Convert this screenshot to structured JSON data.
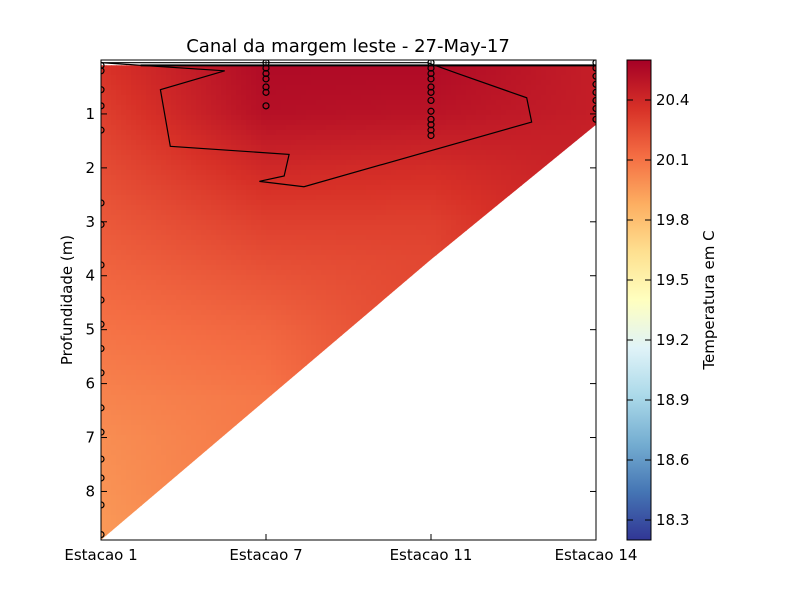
{
  "chart_data": {
    "type": "heatmap",
    "title": "Canal da margem leste - 27-May-17",
    "ylabel": "Profundidade (m)",
    "xlabel": "",
    "x_categories": [
      "Estacao 1",
      "Estacao 7",
      "Estacao 11",
      "Estacao 14"
    ],
    "y_ticks": [
      1,
      2,
      3,
      4,
      5,
      6,
      7,
      8
    ],
    "ylim": [
      8.9,
      0
    ],
    "colorbar": {
      "label": "Temperatura em C",
      "range": [
        18.2,
        20.6
      ],
      "ticks": [
        "18.3",
        "18.6",
        "18.9",
        "19.2",
        "19.5",
        "19.8",
        "20.1",
        "20.4"
      ],
      "colormap": "RdYlBu_r"
    },
    "contour_level_c": 20.4,
    "station_bottom_depth_m": {
      "Estacao 1": 8.9,
      "Estacao 7": 6.3,
      "Estacao 11": 3.7,
      "Estacao 14": 1.2
    },
    "temperature_surface_c": [
      {
        "station": "Estacao 1",
        "profile": [
          [
            0.1,
            20.35
          ],
          [
            1.0,
            20.3
          ],
          [
            2.0,
            20.25
          ],
          [
            3.0,
            20.2
          ],
          [
            4.0,
            20.15
          ],
          [
            5.0,
            20.1
          ],
          [
            6.0,
            20.05
          ],
          [
            7.0,
            20.0
          ],
          [
            8.0,
            19.98
          ],
          [
            8.9,
            19.95
          ]
        ]
      },
      {
        "station": "Estacao 7",
        "profile": [
          [
            0.1,
            20.55
          ],
          [
            1.0,
            20.52
          ],
          [
            2.0,
            20.4
          ],
          [
            3.0,
            20.3
          ],
          [
            4.0,
            20.22
          ],
          [
            5.0,
            20.15
          ],
          [
            6.0,
            20.1
          ],
          [
            6.3,
            20.08
          ]
        ]
      },
      {
        "station": "Estacao 11",
        "profile": [
          [
            0.1,
            20.55
          ],
          [
            1.0,
            20.5
          ],
          [
            2.0,
            20.38
          ],
          [
            3.0,
            20.3
          ],
          [
            3.7,
            20.27
          ]
        ]
      },
      {
        "station": "Estacao 14",
        "profile": [
          [
            0.1,
            20.45
          ],
          [
            1.0,
            20.45
          ],
          [
            1.2,
            20.44
          ]
        ]
      }
    ],
    "sample_points": [
      {
        "station": "Estacao 1",
        "depths": [
          0.1,
          0.2,
          0.55,
          0.85,
          1.3,
          2.65,
          3.05,
          3.8,
          4.45,
          4.9,
          5.35,
          5.8,
          6.45,
          6.9,
          7.4,
          7.75,
          8.25,
          8.8
        ]
      },
      {
        "station": "Estacao 7",
        "depths": [
          0.05,
          0.15,
          0.25,
          0.35,
          0.5,
          0.6,
          0.85
        ]
      },
      {
        "station": "Estacao 11",
        "depths": [
          0.05,
          0.15,
          0.25,
          0.35,
          0.5,
          0.6,
          0.75,
          0.95,
          1.1,
          1.2,
          1.3,
          1.4
        ]
      },
      {
        "station": "Estacao 14",
        "depths": [
          0.05,
          0.15,
          0.3,
          0.45,
          0.6,
          0.75,
          0.9,
          1.1
        ]
      }
    ]
  }
}
